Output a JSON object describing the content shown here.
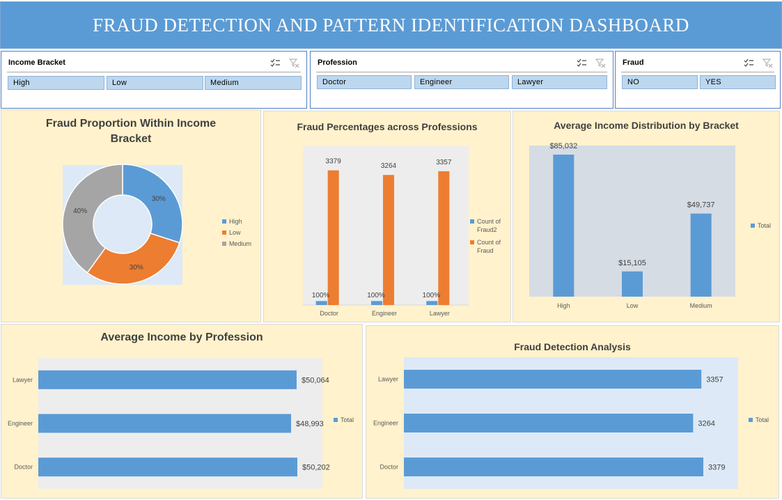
{
  "header": {
    "title": "FRAUD DETECTION AND PATTERN IDENTIFICATION DASHBOARD"
  },
  "slicers": {
    "income_bracket": {
      "title": "Income Bracket",
      "options": [
        "High",
        "Low",
        "Medium"
      ]
    },
    "profession": {
      "title": "Profession",
      "options": [
        "Doctor",
        "Engineer",
        "Lawyer"
      ]
    },
    "fraud": {
      "title": "Fraud",
      "options": [
        "NO",
        "YES"
      ]
    }
  },
  "colors": {
    "blue": "#5b9bd5",
    "orange": "#ed7d31",
    "gray": "#a5a5a5",
    "header": "#5b9bd5",
    "panel": "#fff2cc"
  },
  "chart_data": [
    {
      "type": "pie",
      "title": "Fraud Proportion Within Income Bracket",
      "categories": [
        "High",
        "Low",
        "Medium"
      ],
      "values": [
        30,
        30,
        40
      ],
      "labels": [
        "30%",
        "30%",
        "40%"
      ],
      "legend": [
        "High",
        "Low",
        "Medium"
      ],
      "legend_position": "right"
    },
    {
      "type": "bar",
      "title": "Fraud Percentages across Professions",
      "categories": [
        "Doctor",
        "Engineer",
        "Lawyer"
      ],
      "series": [
        {
          "name": "Count of Fraud2",
          "values": [
            100,
            100,
            100
          ],
          "labels": [
            "100%",
            "100%",
            "100%"
          ]
        },
        {
          "name": "Count of Fraud",
          "values": [
            3379,
            3264,
            3357
          ],
          "labels": [
            "3379",
            "3264",
            "3357"
          ]
        }
      ],
      "legend": [
        "Count of Fraud2",
        "Count of Fraud"
      ],
      "legend_position": "right"
    },
    {
      "type": "bar",
      "title": "Average Income Distribution by Bracket",
      "categories": [
        "High",
        "Low",
        "Medium"
      ],
      "values": [
        85032,
        15105,
        49737
      ],
      "labels": [
        "$85,032",
        "$15,105",
        "$49,737"
      ],
      "legend": [
        "Total"
      ],
      "legend_position": "right"
    },
    {
      "type": "bar",
      "orientation": "horizontal",
      "title": "Average Income by Profession",
      "categories": [
        "Lawyer",
        "Engineer",
        "Doctor"
      ],
      "values": [
        50064,
        48993,
        50202
      ],
      "labels": [
        "$50,064",
        "$48,993",
        "$50,202"
      ],
      "legend": [
        "Total"
      ],
      "legend_position": "right"
    },
    {
      "type": "bar",
      "orientation": "horizontal",
      "title": "Fraud Detection Analysis",
      "categories": [
        "Lawyer",
        "Engineer",
        "Doctor"
      ],
      "values": [
        3357,
        3264,
        3379
      ],
      "labels": [
        "3357",
        "3264",
        "3379"
      ],
      "legend": [
        "Total"
      ],
      "legend_position": "right"
    }
  ]
}
